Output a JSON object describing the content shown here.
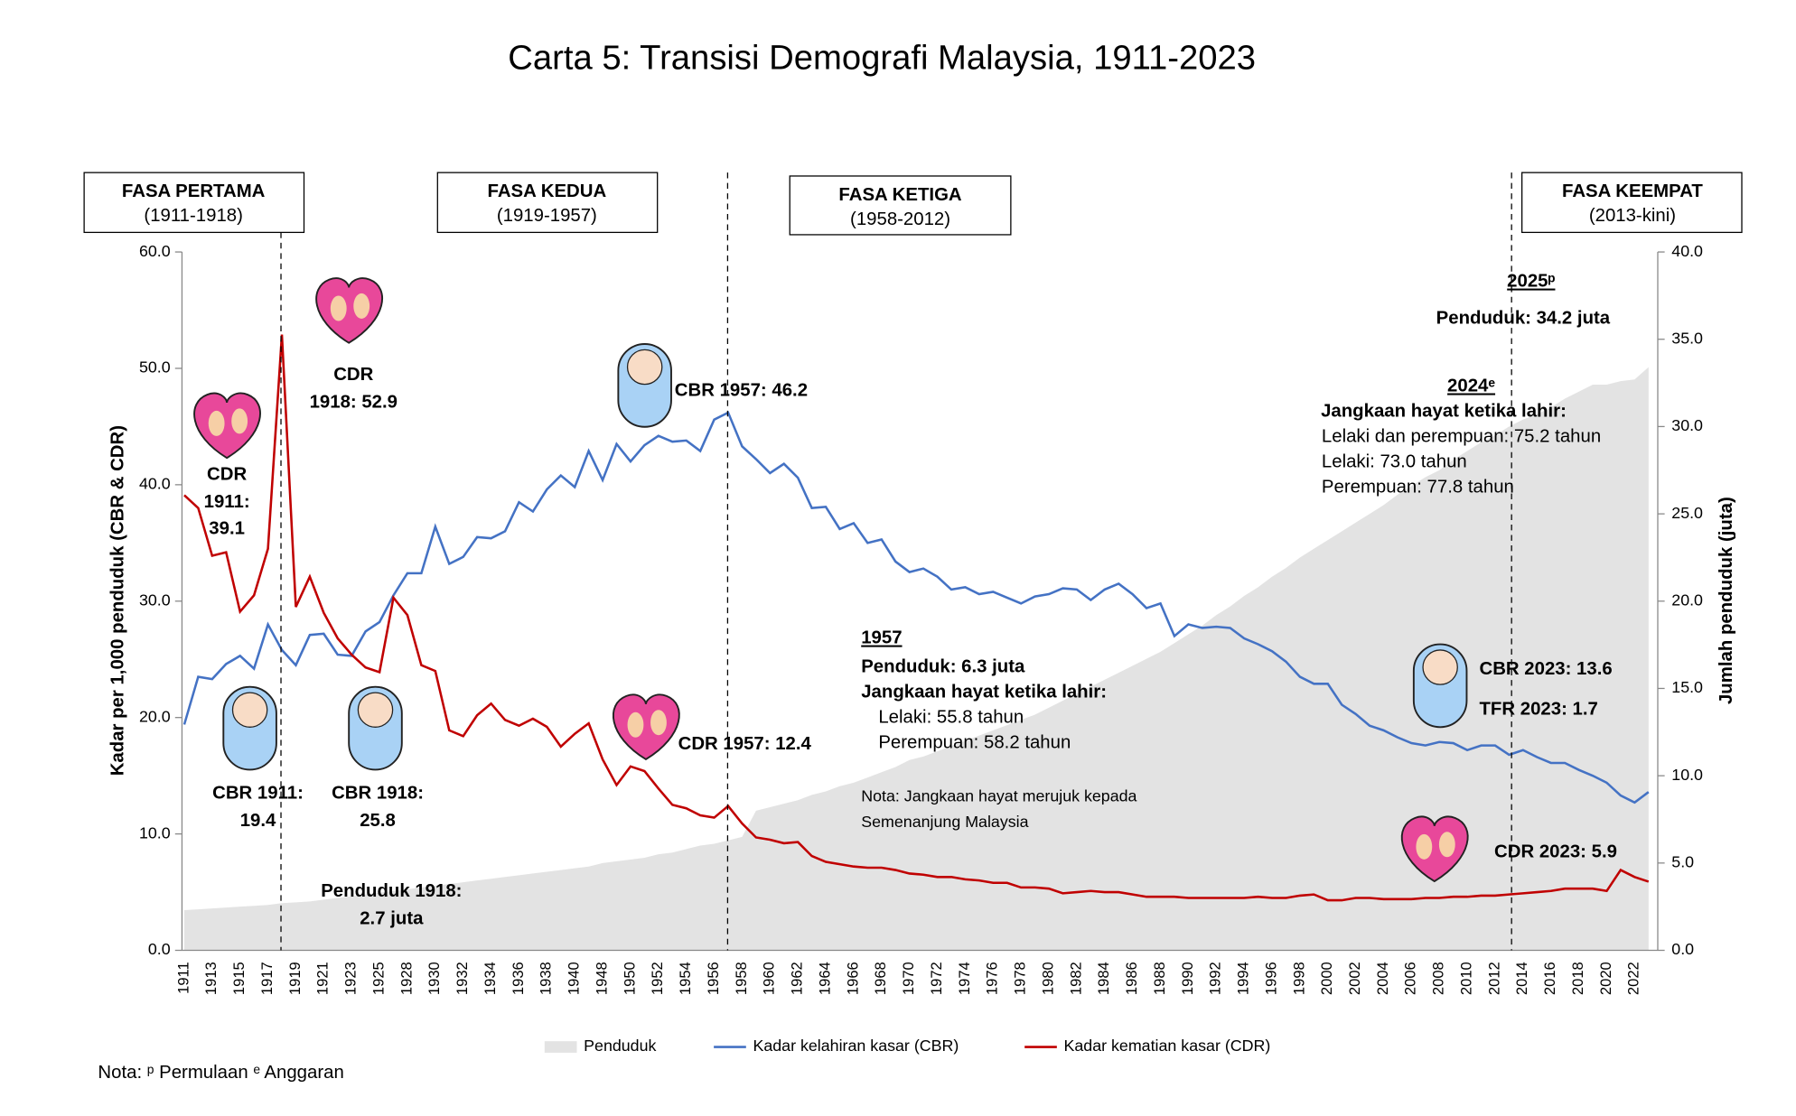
{
  "chart_data": {
    "type": "line",
    "title": "Carta 5: Transisi Demografi Malaysia, 1911-2023",
    "y_label": "Kadar per 1,000 penduduk (CBR & CDR)",
    "y2_label": "Jumlah penduduk (juta)",
    "phases": [
      {
        "name": "FASA PERTAMA",
        "years": "(1911-1918)"
      },
      {
        "name": "FASA KEDUA",
        "years": "(1919-1957)"
      },
      {
        "name": "FASA KETIGA",
        "years": "(1958-2012)"
      },
      {
        "name": "FASA KEEMPAT",
        "years": "(2013-kini)"
      }
    ],
    "annotations": [
      "CDR",
      "1918: 52.9",
      "CDR",
      "1911:",
      "39.1",
      "CBR 1957: 46.2",
      "CBR 1911:",
      "19.4",
      "CBR 1918:",
      "25.8",
      "CDR 1957: 12.4",
      "Penduduk 1918:",
      "2.7 juta",
      "1957",
      "Penduduk: 6.3 juta",
      "Jangkaan hayat ketika lahir:",
      "Lelaki: 55.8 tahun",
      "Perempuan: 58.2 tahun",
      "Nota: Jangkaan  hayat merujuk  kepada",
      "Semenanjung  Malaysia",
      "2025ᵖ",
      "Penduduk: 34.2 juta",
      "2024ᵉ",
      "Jangkaan hayat ketika lahir:",
      "Lelaki dan perempuan: 75.2 tahun",
      "Lelaki: 73.0 tahun",
      "Perempuan: 77.8 tahun",
      "CBR 2023: 13.6",
      "TFR 2023: 1.7",
      "CDR 2023: 5.9"
    ],
    "note": "Nota: ᵖ Permulaan   ᵉ Anggaran",
    "categories": [
      "1911",
      null,
      "1913",
      null,
      "1915",
      null,
      "1917",
      null,
      "1919",
      null,
      "1921",
      null,
      "1923",
      null,
      "1925",
      null,
      "1928",
      null,
      "1930",
      null,
      "1932",
      null,
      "1934",
      null,
      "1936",
      null,
      "1938",
      null,
      "1940",
      null,
      "1948",
      null,
      "1950",
      null,
      "1952",
      null,
      "1954",
      null,
      "1956",
      null,
      "1958",
      null,
      "1960",
      null,
      "1962",
      null,
      "1964",
      null,
      "1966",
      null,
      "1968",
      null,
      "1970",
      null,
      "1972",
      null,
      "1974",
      null,
      "1976",
      null,
      "1978",
      null,
      "1980",
      null,
      "1982",
      null,
      "1984",
      null,
      "1986",
      null,
      "1988",
      null,
      "1990",
      null,
      "1992",
      null,
      "1994",
      null,
      "1996",
      null,
      "1998",
      null,
      "2000",
      null,
      "2002",
      null,
      "2004",
      null,
      "2006",
      null,
      "2008",
      null,
      "2010",
      null,
      "2012",
      null,
      "2014",
      null,
      "2016",
      null,
      "2018",
      null,
      "2020",
      null,
      "2022",
      null
    ],
    "series": [
      {
        "name": "Penduduk",
        "color": "#e3e3e3",
        "kind": "area",
        "axis": "y2",
        "values": [
          2.3,
          2.35,
          2.4,
          2.45,
          2.5,
          2.55,
          2.6,
          2.7,
          2.75,
          2.8,
          2.9,
          3.0,
          3.1,
          3.2,
          3.3,
          3.4,
          3.5,
          3.6,
          3.7,
          3.8,
          3.9,
          4.0,
          4.1,
          4.2,
          4.3,
          4.4,
          4.5,
          4.6,
          4.7,
          4.8,
          5.0,
          5.1,
          5.2,
          5.3,
          5.5,
          5.6,
          5.8,
          6.0,
          6.1,
          6.3,
          6.5,
          8.0,
          8.2,
          8.4,
          8.6,
          8.9,
          9.1,
          9.4,
          9.6,
          9.9,
          10.2,
          10.5,
          10.9,
          11.1,
          11.4,
          11.7,
          12.0,
          12.3,
          12.6,
          12.9,
          13.2,
          13.5,
          13.9,
          14.3,
          14.7,
          15.1,
          15.5,
          15.9,
          16.3,
          16.7,
          17.1,
          17.6,
          18.1,
          18.6,
          19.2,
          19.7,
          20.3,
          20.8,
          21.4,
          21.9,
          22.5,
          23.0,
          23.5,
          24.0,
          24.5,
          25.0,
          25.5,
          26.1,
          26.6,
          27.1,
          27.5,
          28.1,
          28.6,
          29.1,
          29.5,
          30.0,
          30.4,
          30.7,
          31.1,
          31.6,
          32.0,
          32.4,
          32.4,
          32.6,
          32.7,
          33.4
        ]
      },
      {
        "name": "Kadar kelahiran kasar (CBR)",
        "color": "#4472c4",
        "kind": "line",
        "values": [
          19.4,
          23.5,
          23.3,
          24.6,
          25.3,
          24.2,
          28.0,
          25.8,
          24.5,
          27.1,
          27.2,
          25.4,
          25.3,
          27.4,
          28.2,
          30.5,
          32.4,
          32.4,
          36.4,
          33.2,
          33.8,
          35.5,
          35.4,
          36.0,
          38.5,
          37.7,
          39.6,
          40.8,
          39.8,
          42.9,
          40.4,
          43.5,
          42.0,
          43.4,
          44.2,
          43.7,
          43.8,
          42.9,
          45.6,
          46.2,
          43.3,
          42.2,
          41.0,
          41.8,
          40.6,
          38.0,
          38.1,
          36.2,
          36.7,
          35.0,
          35.3,
          33.4,
          32.5,
          32.8,
          32.1,
          31.0,
          31.2,
          30.6,
          30.8,
          30.3,
          29.8,
          30.4,
          30.6,
          31.1,
          31.0,
          30.1,
          31.0,
          31.5,
          30.6,
          29.4,
          29.8,
          27.0,
          28.0,
          27.7,
          27.8,
          27.7,
          26.8,
          26.3,
          25.7,
          24.8,
          23.5,
          22.9,
          22.9,
          21.1,
          20.3,
          19.3,
          18.9,
          18.3,
          17.8,
          17.6,
          17.9,
          17.8,
          17.2,
          17.6,
          17.6,
          16.8,
          17.2,
          16.6,
          16.1,
          16.1,
          15.5,
          15.0,
          14.4,
          13.3,
          12.7,
          13.6
        ]
      },
      {
        "name": "Kadar kematian kasar (CDR)",
        "color": "#c00000",
        "kind": "line",
        "values": [
          39.1,
          38.0,
          33.9,
          34.2,
          29.1,
          30.5,
          34.5,
          52.9,
          29.5,
          32.1,
          29.0,
          26.8,
          25.4,
          24.3,
          23.9,
          30.3,
          28.8,
          24.5,
          24.0,
          18.9,
          18.4,
          20.2,
          21.2,
          19.8,
          19.3,
          19.9,
          19.2,
          17.5,
          18.6,
          19.5,
          16.4,
          14.2,
          15.8,
          15.4,
          13.9,
          12.5,
          12.2,
          11.6,
          11.4,
          12.4,
          10.9,
          9.7,
          9.5,
          9.2,
          9.3,
          8.1,
          7.6,
          7.4,
          7.2,
          7.1,
          7.1,
          6.9,
          6.6,
          6.5,
          6.3,
          6.3,
          6.1,
          6.0,
          5.8,
          5.8,
          5.4,
          5.4,
          5.3,
          4.9,
          5.0,
          5.1,
          5.0,
          5.0,
          4.8,
          4.6,
          4.6,
          4.6,
          4.5,
          4.5,
          4.5,
          4.5,
          4.5,
          4.6,
          4.5,
          4.5,
          4.7,
          4.8,
          4.3,
          4.3,
          4.5,
          4.5,
          4.4,
          4.4,
          4.4,
          4.5,
          4.5,
          4.6,
          4.6,
          4.7,
          4.7,
          4.8,
          4.9,
          5.0,
          5.1,
          5.3,
          5.3,
          5.3,
          5.1,
          6.9,
          6.3,
          5.9
        ]
      }
    ],
    "ylim": [
      0,
      60
    ],
    "yticks": [
      {
        "value": 0,
        "label": "0.0"
      },
      {
        "value": 10,
        "label": "10.0"
      },
      {
        "value": 20,
        "label": "20.0"
      },
      {
        "value": 30,
        "label": "30.0"
      },
      {
        "value": 40,
        "label": "40.0"
      },
      {
        "value": 50,
        "label": "50.0"
      },
      {
        "value": 60,
        "label": "60.0"
      }
    ],
    "y2lim": [
      0,
      40
    ],
    "y2ticks": [
      {
        "value": 0,
        "label": "0.0"
      },
      {
        "value": 5,
        "label": "5.0"
      },
      {
        "value": 10,
        "label": "10.0"
      },
      {
        "value": 15,
        "label": "15.0"
      },
      {
        "value": 20,
        "label": "20.0"
      },
      {
        "value": 25,
        "label": "25.0"
      },
      {
        "value": 30,
        "label": "30.0"
      },
      {
        "value": 35,
        "label": "35.0"
      },
      {
        "value": 40,
        "label": "40.0"
      }
    ]
  }
}
